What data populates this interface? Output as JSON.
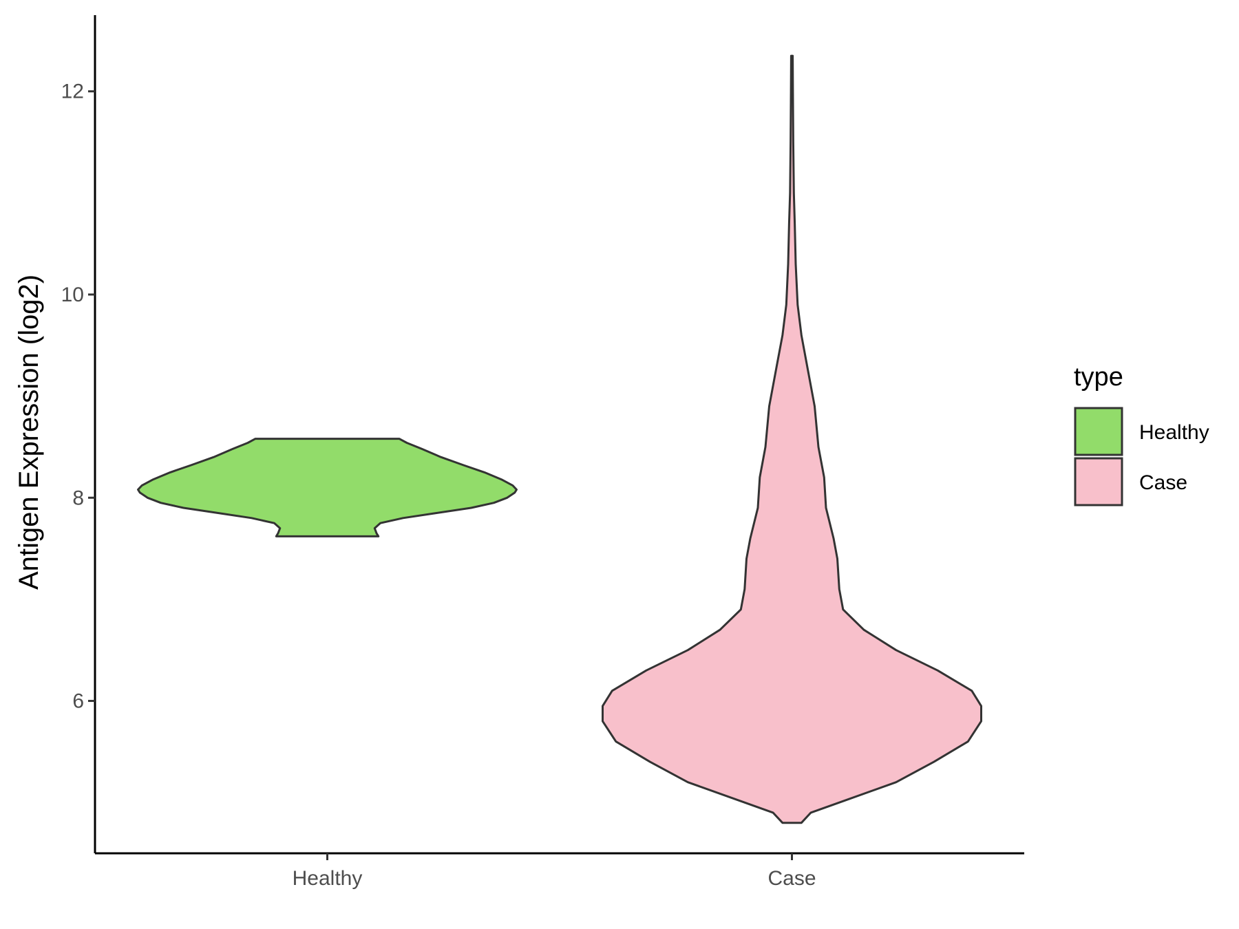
{
  "chart_data": {
    "type": "violin",
    "xlabel": "",
    "ylabel": "Antigen Expression (log2)",
    "ylim": [
      4.5,
      12.75
    ],
    "yticks": [
      "6",
      "8",
      "10",
      "12"
    ],
    "categories": [
      "Healthy",
      "Case"
    ],
    "grid": false,
    "legend": {
      "title": "type",
      "position": "right",
      "entries": [
        {
          "label": "Healthy",
          "color": "#92dc6a"
        },
        {
          "label": "Case",
          "color": "#f8c0cb"
        }
      ]
    },
    "series": [
      {
        "name": "Healthy",
        "color": "#92dc6a",
        "range": [
          7.62,
          8.58
        ],
        "density": [
          [
            7.62,
            0.27
          ],
          [
            7.65,
            0.26
          ],
          [
            7.7,
            0.25
          ],
          [
            7.75,
            0.28
          ],
          [
            7.8,
            0.4
          ],
          [
            7.85,
            0.58
          ],
          [
            7.9,
            0.76
          ],
          [
            7.95,
            0.88
          ],
          [
            8.0,
            0.95
          ],
          [
            8.05,
            0.99
          ],
          [
            8.08,
            1.0
          ],
          [
            8.12,
            0.98
          ],
          [
            8.18,
            0.92
          ],
          [
            8.25,
            0.83
          ],
          [
            8.32,
            0.72
          ],
          [
            8.4,
            0.6
          ],
          [
            8.48,
            0.5
          ],
          [
            8.54,
            0.42
          ],
          [
            8.58,
            0.38
          ]
        ]
      },
      {
        "name": "Case",
        "color": "#f8c0cb",
        "range": [
          4.8,
          12.35
        ],
        "density": [
          [
            4.8,
            0.05
          ],
          [
            4.9,
            0.1
          ],
          [
            5.0,
            0.25
          ],
          [
            5.2,
            0.55
          ],
          [
            5.4,
            0.75
          ],
          [
            5.6,
            0.93
          ],
          [
            5.8,
            1.0
          ],
          [
            5.95,
            1.0
          ],
          [
            6.1,
            0.95
          ],
          [
            6.3,
            0.77
          ],
          [
            6.5,
            0.55
          ],
          [
            6.7,
            0.38
          ],
          [
            6.9,
            0.27
          ],
          [
            7.1,
            0.25
          ],
          [
            7.4,
            0.24
          ],
          [
            7.6,
            0.22
          ],
          [
            7.9,
            0.18
          ],
          [
            8.2,
            0.17
          ],
          [
            8.5,
            0.14
          ],
          [
            8.9,
            0.12
          ],
          [
            9.3,
            0.08
          ],
          [
            9.6,
            0.05
          ],
          [
            9.9,
            0.03
          ],
          [
            10.3,
            0.02
          ],
          [
            10.7,
            0.015
          ],
          [
            11.0,
            0.01
          ],
          [
            11.5,
            0.007
          ],
          [
            12.0,
            0.005
          ],
          [
            12.35,
            0.004
          ]
        ]
      }
    ]
  }
}
